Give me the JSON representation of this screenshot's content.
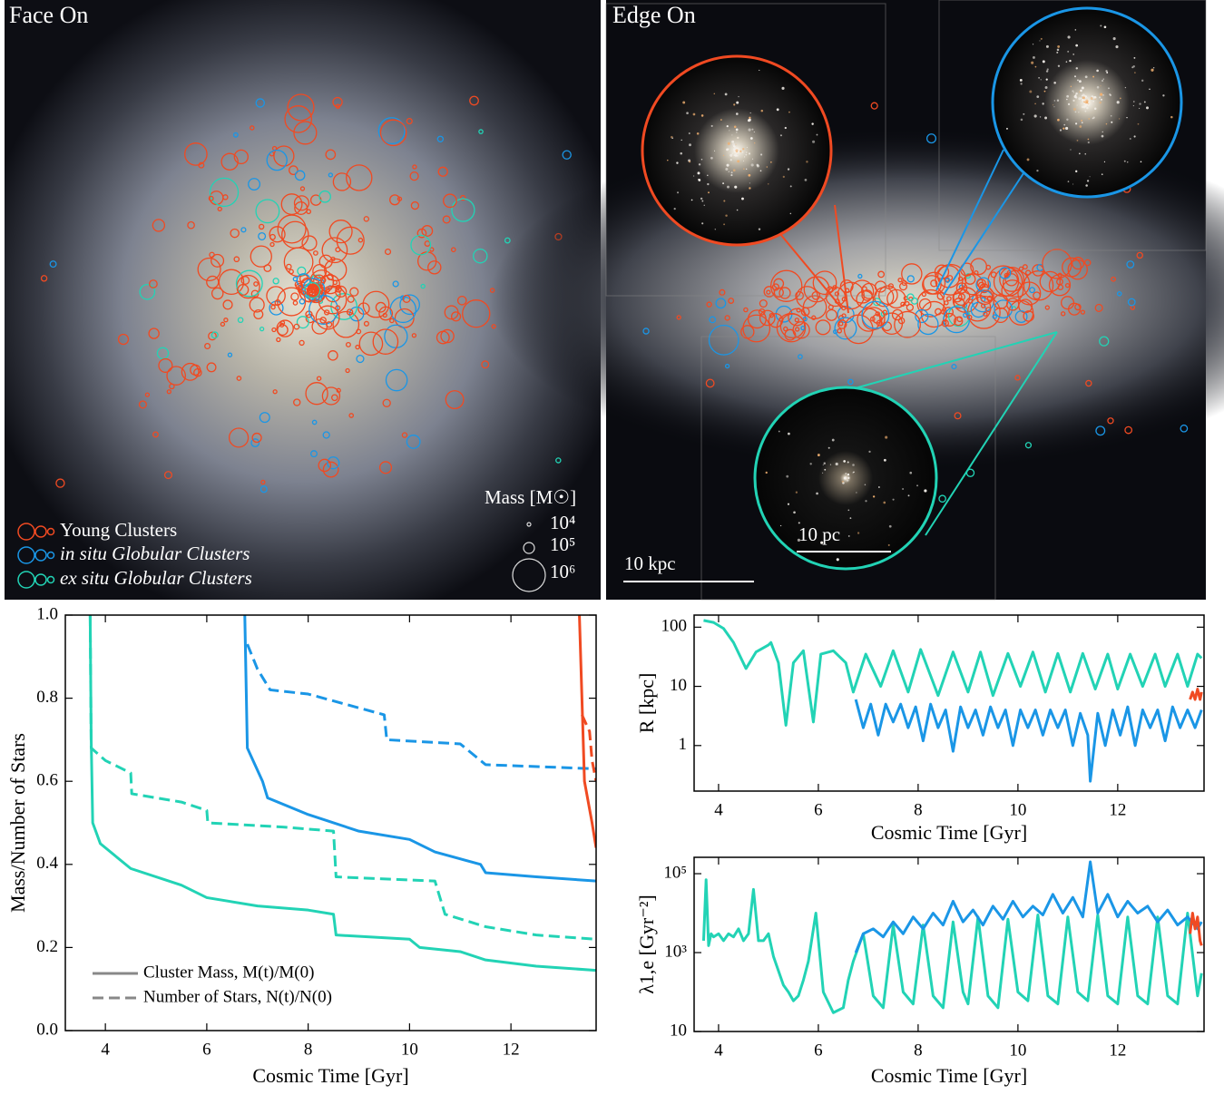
{
  "images": {
    "face_on": {
      "title": "Face On",
      "legend": [
        "Young Clusters",
        "in situ Globular Clusters",
        "ex situ Globular Clusters"
      ],
      "legend_colors": [
        "#f04a22",
        "#1a96e6",
        "#22d3b5"
      ],
      "mass_title": "Mass [M☉]",
      "mass_labels": [
        "10⁴",
        "10⁵",
        "10⁶"
      ]
    },
    "edge_on": {
      "title": "Edge On",
      "scale_kpc": "10 kpc",
      "scale_pc": "10 pc"
    }
  },
  "chart_data": [
    {
      "type": "line",
      "xlabel": "Cosmic Time [Gyr]",
      "ylabel": "Mass/Number of Stars",
      "xlim": [
        3.21,
        13.68
      ],
      "ylim": [
        0,
        1
      ],
      "xticks": [
        4,
        6,
        8,
        10,
        12
      ],
      "yticks": [
        {
          "value": 0,
          "label": "0.0"
        },
        {
          "value": 0.2,
          "label": "0.2"
        },
        {
          "value": 0.4,
          "label": "0.4"
        },
        {
          "value": 0.6,
          "label": "0.6"
        },
        {
          "value": 0.8,
          "label": "0.8"
        },
        {
          "value": 1,
          "label": "1.0"
        }
      ],
      "legend": [
        {
          "label": "Cluster Mass, M(t)/M(0)",
          "dash": false
        },
        {
          "label": "Number of Stars, N(t)/N(0)",
          "dash": true
        }
      ],
      "legend_color": "#888888",
      "legend_loc": "lower left",
      "series": [
        {
          "color": "#22d3b5",
          "dash": false,
          "x": [
            3.7,
            3.72,
            3.75,
            3.9,
            4.5,
            5.5,
            6,
            7,
            8,
            8.5,
            8.55,
            10,
            10.2,
            11,
            11.5,
            12.5,
            13.68
          ],
          "values": [
            1,
            0.7,
            0.5,
            0.45,
            0.39,
            0.35,
            0.32,
            0.3,
            0.29,
            0.28,
            0.23,
            0.22,
            0.2,
            0.19,
            0.17,
            0.155,
            0.145
          ]
        },
        {
          "color": "#22d3b5",
          "dash": true,
          "x": [
            3.7,
            3.72,
            4,
            4.5,
            4.52,
            5.5,
            6,
            6.02,
            7.5,
            8.5,
            8.55,
            10.5,
            10.6,
            10.7,
            11.5,
            12.5,
            13.68
          ],
          "values": [
            1,
            0.68,
            0.65,
            0.62,
            0.57,
            0.55,
            0.53,
            0.5,
            0.49,
            0.48,
            0.37,
            0.36,
            0.32,
            0.28,
            0.25,
            0.23,
            0.22
          ]
        },
        {
          "color": "#1a96e6",
          "dash": false,
          "x": [
            6.75,
            6.8,
            7.1,
            7.2,
            8,
            9,
            10,
            10.5,
            11.4,
            11.5,
            12.5,
            13.68
          ],
          "values": [
            1,
            0.68,
            0.6,
            0.56,
            0.52,
            0.48,
            0.46,
            0.43,
            0.4,
            0.38,
            0.37,
            0.36
          ]
        },
        {
          "color": "#1a96e6",
          "dash": true,
          "x": [
            6.8,
            7,
            7.25,
            8,
            8.6,
            9.5,
            9.55,
            11,
            11.5,
            13.68
          ],
          "values": [
            0.93,
            0.87,
            0.82,
            0.81,
            0.79,
            0.76,
            0.7,
            0.69,
            0.64,
            0.63
          ]
        },
        {
          "color": "#f04a22",
          "dash": false,
          "x": [
            13.35,
            13.45,
            13.6,
            13.68
          ],
          "values": [
            1,
            0.6,
            0.5,
            0.44
          ]
        },
        {
          "color": "#f04a22",
          "dash": true,
          "x": [
            13.4,
            13.55,
            13.6,
            13.68
          ],
          "values": [
            0.76,
            0.72,
            0.65,
            0.6
          ]
        }
      ]
    },
    {
      "type": "line",
      "xlabel": "Cosmic Time [Gyr]",
      "ylabel": "R [kpc]",
      "log_y": true,
      "xlim": [
        3.51,
        13.73
      ],
      "ylim": [
        0.17,
        160
      ],
      "xticks": [
        4,
        6,
        8,
        10,
        12
      ],
      "yticks": [
        1,
        10,
        100
      ],
      "series": [
        {
          "color": "#22d3b5",
          "x": [
            3.7,
            3.9,
            4.1,
            4.3,
            4.55,
            4.75,
            5.0,
            5.05,
            5.2,
            5.35,
            5.5,
            5.7,
            5.9,
            6.05,
            6.3,
            6.55,
            6.7,
            6.95,
            7.25,
            7.5,
            7.8,
            8.05,
            8.4,
            8.7,
            9.0,
            9.25,
            9.5,
            9.8,
            10.05,
            10.3,
            10.55,
            10.8,
            11.05,
            11.3,
            11.55,
            11.8,
            12.0,
            12.25,
            12.5,
            12.75,
            12.95,
            13.2,
            13.4,
            13.6,
            13.68
          ],
          "values": [
            130,
            120,
            95,
            55,
            20,
            38,
            50,
            55,
            25,
            2.2,
            25,
            40,
            2.5,
            35,
            40,
            25,
            8,
            35,
            10,
            40,
            8,
            42,
            7,
            38,
            8,
            38,
            7,
            36,
            10,
            38,
            8,
            36,
            8,
            36,
            9,
            35,
            9,
            35,
            10,
            35,
            10,
            35,
            10,
            35,
            30
          ]
        },
        {
          "color": "#1a96e6",
          "x": [
            6.75,
            6.9,
            7.05,
            7.2,
            7.35,
            7.5,
            7.65,
            7.8,
            7.95,
            8.1,
            8.25,
            8.4,
            8.55,
            8.7,
            8.85,
            9.0,
            9.15,
            9.3,
            9.45,
            9.6,
            9.75,
            9.9,
            10.05,
            10.2,
            10.35,
            10.5,
            10.65,
            10.8,
            10.95,
            11.1,
            11.25,
            11.4,
            11.45,
            11.6,
            11.75,
            11.9,
            12.05,
            12.2,
            12.35,
            12.5,
            12.65,
            12.8,
            12.95,
            13.1,
            13.25,
            13.4,
            13.55,
            13.68
          ],
          "values": [
            6,
            2,
            5,
            1.5,
            5,
            2.5,
            5,
            2,
            4.5,
            1.2,
            5,
            2,
            4,
            0.8,
            4.5,
            2,
            4,
            1.5,
            4.5,
            2,
            4,
            1,
            4,
            2,
            4,
            1.5,
            4,
            2,
            4,
            1,
            3.5,
            1.5,
            0.25,
            3.5,
            1,
            4,
            1.5,
            4.5,
            1,
            4,
            2,
            4,
            1.2,
            4.5,
            2,
            4,
            2,
            4
          ]
        },
        {
          "color": "#f04a22",
          "x": [
            13.45,
            13.5,
            13.55,
            13.6,
            13.65,
            13.68
          ],
          "values": [
            6,
            8,
            6,
            9,
            6,
            8
          ]
        }
      ]
    },
    {
      "type": "line",
      "xlabel": "Cosmic Time [Gyr]",
      "ylabel": "λ1,e [Gyr⁻²]",
      "log_y": true,
      "xlim": [
        3.51,
        13.73
      ],
      "ylim": [
        10,
        260000
      ],
      "xticks": [
        4,
        6,
        8,
        10,
        12
      ],
      "yticks": [
        10,
        {
          "value": 1000,
          "label": "10³"
        },
        {
          "value": 100000,
          "label": "10⁵"
        }
      ],
      "series": [
        {
          "color": "#22d3b5",
          "x": [
            3.7,
            3.75,
            3.8,
            3.85,
            3.9,
            4.0,
            4.1,
            4.2,
            4.3,
            4.4,
            4.5,
            4.6,
            4.7,
            4.8,
            4.9,
            5.0,
            5.1,
            5.3,
            5.4,
            5.5,
            5.6,
            5.7,
            5.8,
            5.95,
            6.1,
            6.3,
            6.5,
            6.6,
            6.7,
            6.9,
            7.1,
            7.3,
            7.5,
            7.7,
            7.9,
            8.1,
            8.3,
            8.5,
            8.7,
            8.9,
            9.0,
            9.2,
            9.4,
            9.6,
            9.8,
            10.0,
            10.2,
            10.4,
            10.6,
            10.8,
            11.0,
            11.2,
            11.4,
            11.6,
            11.8,
            12.0,
            12.2,
            12.4,
            12.6,
            12.8,
            13.0,
            13.2,
            13.4,
            13.6,
            13.68
          ],
          "values": [
            2000,
            70000,
            1500,
            3000,
            2500,
            3000,
            2000,
            3000,
            2500,
            4000,
            2000,
            3000,
            40000,
            2000,
            2000,
            3000,
            800,
            150,
            100,
            60,
            80,
            200,
            600,
            10000,
            100,
            30,
            40,
            200,
            600,
            3000,
            80,
            40,
            5000,
            100,
            50,
            5000,
            80,
            40,
            6000,
            100,
            50,
            8000,
            80,
            40,
            7000,
            100,
            60,
            9000,
            80,
            50,
            8000,
            100,
            60,
            9000,
            80,
            50,
            8000,
            80,
            50,
            8000,
            80,
            50,
            10000,
            80,
            300
          ]
        },
        {
          "color": "#1a96e6",
          "x": [
            6.75,
            6.9,
            7.1,
            7.3,
            7.5,
            7.7,
            7.9,
            8.1,
            8.3,
            8.5,
            8.7,
            8.9,
            9.1,
            9.3,
            9.5,
            9.7,
            9.9,
            10.1,
            10.3,
            10.5,
            10.7,
            10.9,
            11.1,
            11.3,
            11.45,
            11.6,
            11.8,
            12.0,
            12.2,
            12.4,
            12.6,
            12.8,
            13.0,
            13.2,
            13.4,
            13.6,
            13.68
          ],
          "values": [
            1000,
            3000,
            4000,
            2500,
            6000,
            3000,
            8000,
            4000,
            10000,
            5000,
            20000,
            6000,
            12000,
            5000,
            15000,
            7000,
            20000,
            8000,
            15000,
            9000,
            30000,
            10000,
            25000,
            8000,
            200000,
            10000,
            30000,
            8000,
            20000,
            10000,
            15000,
            6000,
            12000,
            5000,
            8000,
            4000,
            6000
          ]
        },
        {
          "color": "#f04a22",
          "x": [
            13.45,
            13.5,
            13.55,
            13.6,
            13.65,
            13.68
          ],
          "values": [
            3000,
            10000,
            4000,
            8000,
            2000,
            1500
          ]
        }
      ]
    }
  ]
}
